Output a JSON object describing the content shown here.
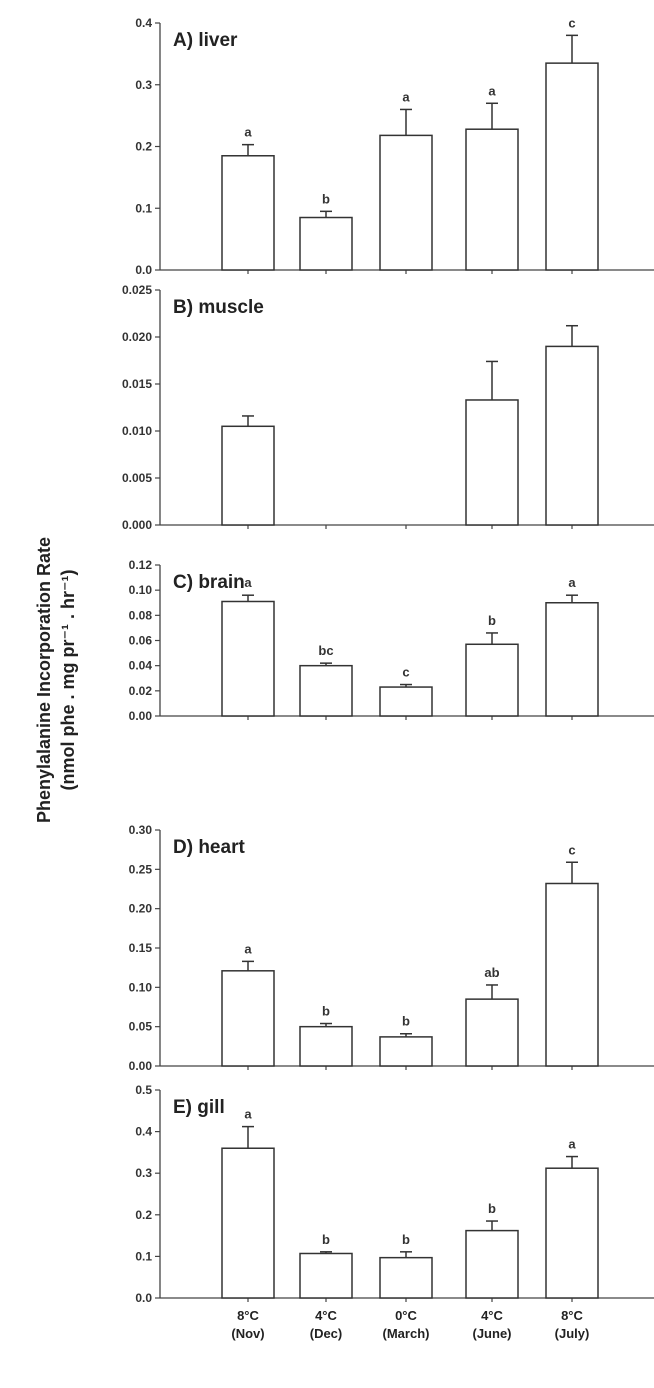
{
  "figure": {
    "ylabel_line1": "Phenylalanine Incorporation Rate",
    "ylabel_line2": "(nmol phe . mg pr⁻¹ . hr⁻¹)"
  },
  "chart_data": [
    {
      "type": "bar",
      "title": "A) liver",
      "categories": [
        "8°C (Nov)",
        "4°C (Dec)",
        "0°C (March)",
        "4°C (June)",
        "8°C (July)"
      ],
      "values": [
        0.185,
        0.085,
        0.218,
        0.228,
        0.335
      ],
      "errors": [
        0.018,
        0.01,
        0.042,
        0.042,
        0.045
      ],
      "letters": [
        "a",
        "b",
        "a",
        "a",
        "c"
      ],
      "ylim": [
        0,
        0.4
      ],
      "yticks": [
        0.0,
        0.1,
        0.2,
        0.3,
        0.4
      ],
      "ytick_labels": [
        "0.0",
        "0.1",
        "0.2",
        "0.3",
        "0.4"
      ]
    },
    {
      "type": "bar",
      "title": "B) muscle",
      "categories": [
        "8°C (Nov)",
        "4°C (Dec)",
        "0°C (March)",
        "4°C (June)",
        "8°C (July)"
      ],
      "values": [
        0.0105,
        null,
        null,
        0.0133,
        0.019
      ],
      "errors": [
        0.0011,
        null,
        null,
        0.0041,
        0.0022
      ],
      "letters": [
        "",
        "",
        "",
        "",
        ""
      ],
      "ylim": [
        0,
        0.025
      ],
      "yticks": [
        0.0,
        0.005,
        0.01,
        0.015,
        0.02,
        0.025
      ],
      "ytick_labels": [
        "0.000",
        "0.005",
        "0.010",
        "0.015",
        "0.020",
        "0.025"
      ]
    },
    {
      "type": "bar",
      "title": "C) brain",
      "categories": [
        "8°C (Nov)",
        "4°C (Dec)",
        "0°C (March)",
        "4°C (June)",
        "8°C (July)"
      ],
      "values": [
        0.091,
        0.04,
        0.023,
        0.057,
        0.09
      ],
      "errors": [
        0.005,
        0.002,
        0.002,
        0.009,
        0.006
      ],
      "letters": [
        "a",
        "bc",
        "c",
        "b",
        "a"
      ],
      "ylim": [
        0,
        0.12
      ],
      "yticks": [
        0.0,
        0.02,
        0.04,
        0.06,
        0.08,
        0.1,
        0.12
      ],
      "ytick_labels": [
        "0.00",
        "0.02",
        "0.04",
        "0.06",
        "0.08",
        "0.10",
        "0.12"
      ]
    },
    {
      "type": "bar",
      "title": "D) heart",
      "categories": [
        "8°C (Nov)",
        "4°C (Dec)",
        "0°C (March)",
        "4°C (June)",
        "8°C (July)"
      ],
      "values": [
        0.121,
        0.05,
        0.037,
        0.085,
        0.232
      ],
      "errors": [
        0.012,
        0.004,
        0.004,
        0.018,
        0.027
      ],
      "letters": [
        "a",
        "b",
        "b",
        "ab",
        "c"
      ],
      "ylim": [
        0,
        0.3
      ],
      "yticks": [
        0.0,
        0.05,
        0.1,
        0.15,
        0.2,
        0.25,
        0.3
      ],
      "ytick_labels": [
        "0.00",
        "0.05",
        "0.10",
        "0.15",
        "0.20",
        "0.25",
        "0.30"
      ]
    },
    {
      "type": "bar",
      "title": "E) gill",
      "categories": [
        "8°C (Nov)",
        "4°C (Dec)",
        "0°C (March)",
        "4°C (June)",
        "8°C (July)"
      ],
      "values": [
        0.36,
        0.107,
        0.097,
        0.162,
        0.312
      ],
      "errors": [
        0.052,
        0.004,
        0.014,
        0.023,
        0.028
      ],
      "letters": [
        "a",
        "b",
        "b",
        "b",
        "a"
      ],
      "ylim": [
        0,
        0.5
      ],
      "yticks": [
        0.0,
        0.1,
        0.2,
        0.3,
        0.4,
        0.5
      ],
      "ytick_labels": [
        "0.0",
        "0.1",
        "0.2",
        "0.3",
        "0.4",
        "0.5"
      ],
      "xtick_line1": [
        "8°C",
        "4°C",
        "0°C",
        "4°C",
        "8°C"
      ],
      "xtick_line2": [
        "(Nov)",
        "(Dec)",
        "(March)",
        "(June)",
        "(July)"
      ]
    }
  ]
}
